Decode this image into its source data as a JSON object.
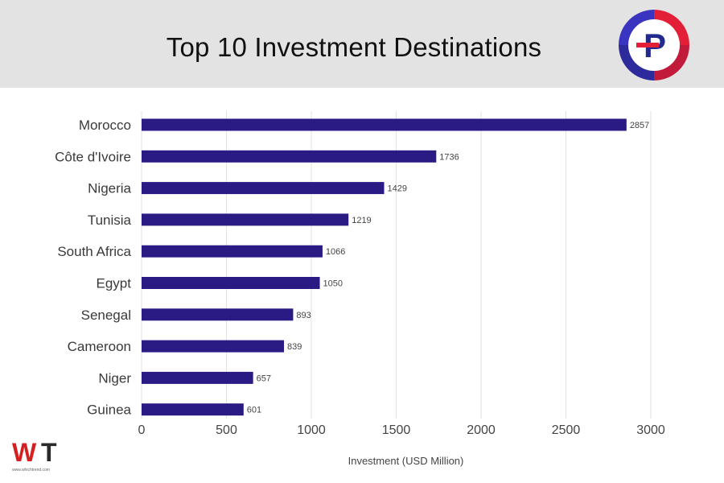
{
  "header": {
    "title": "Top 10 Investment Destinations"
  },
  "logos": {
    "publisher": "P",
    "watermark": "WT",
    "watermark_url": "www.whichtrend.com"
  },
  "chart_data": {
    "type": "bar",
    "orientation": "horizontal",
    "title": "Top 10 Investment Destinations",
    "xlabel": "Investment (USD Million)",
    "ylabel": "",
    "xlim": [
      0,
      3000
    ],
    "xticks": [
      0,
      500,
      1000,
      1500,
      2000,
      2500,
      3000
    ],
    "grid": true,
    "categories": [
      "Morocco",
      "Côte d'Ivoire",
      "Nigeria",
      "Tunisia",
      "South Africa",
      "Egypt",
      "Senegal",
      "Cameroon",
      "Niger",
      "Guinea"
    ],
    "values": [
      2857,
      1736,
      1429,
      1219,
      1066,
      1050,
      893,
      839,
      657,
      601
    ],
    "colors": {
      "bar": "#2a1a84",
      "grid": "#e2e2e2",
      "text": "#444444"
    }
  }
}
